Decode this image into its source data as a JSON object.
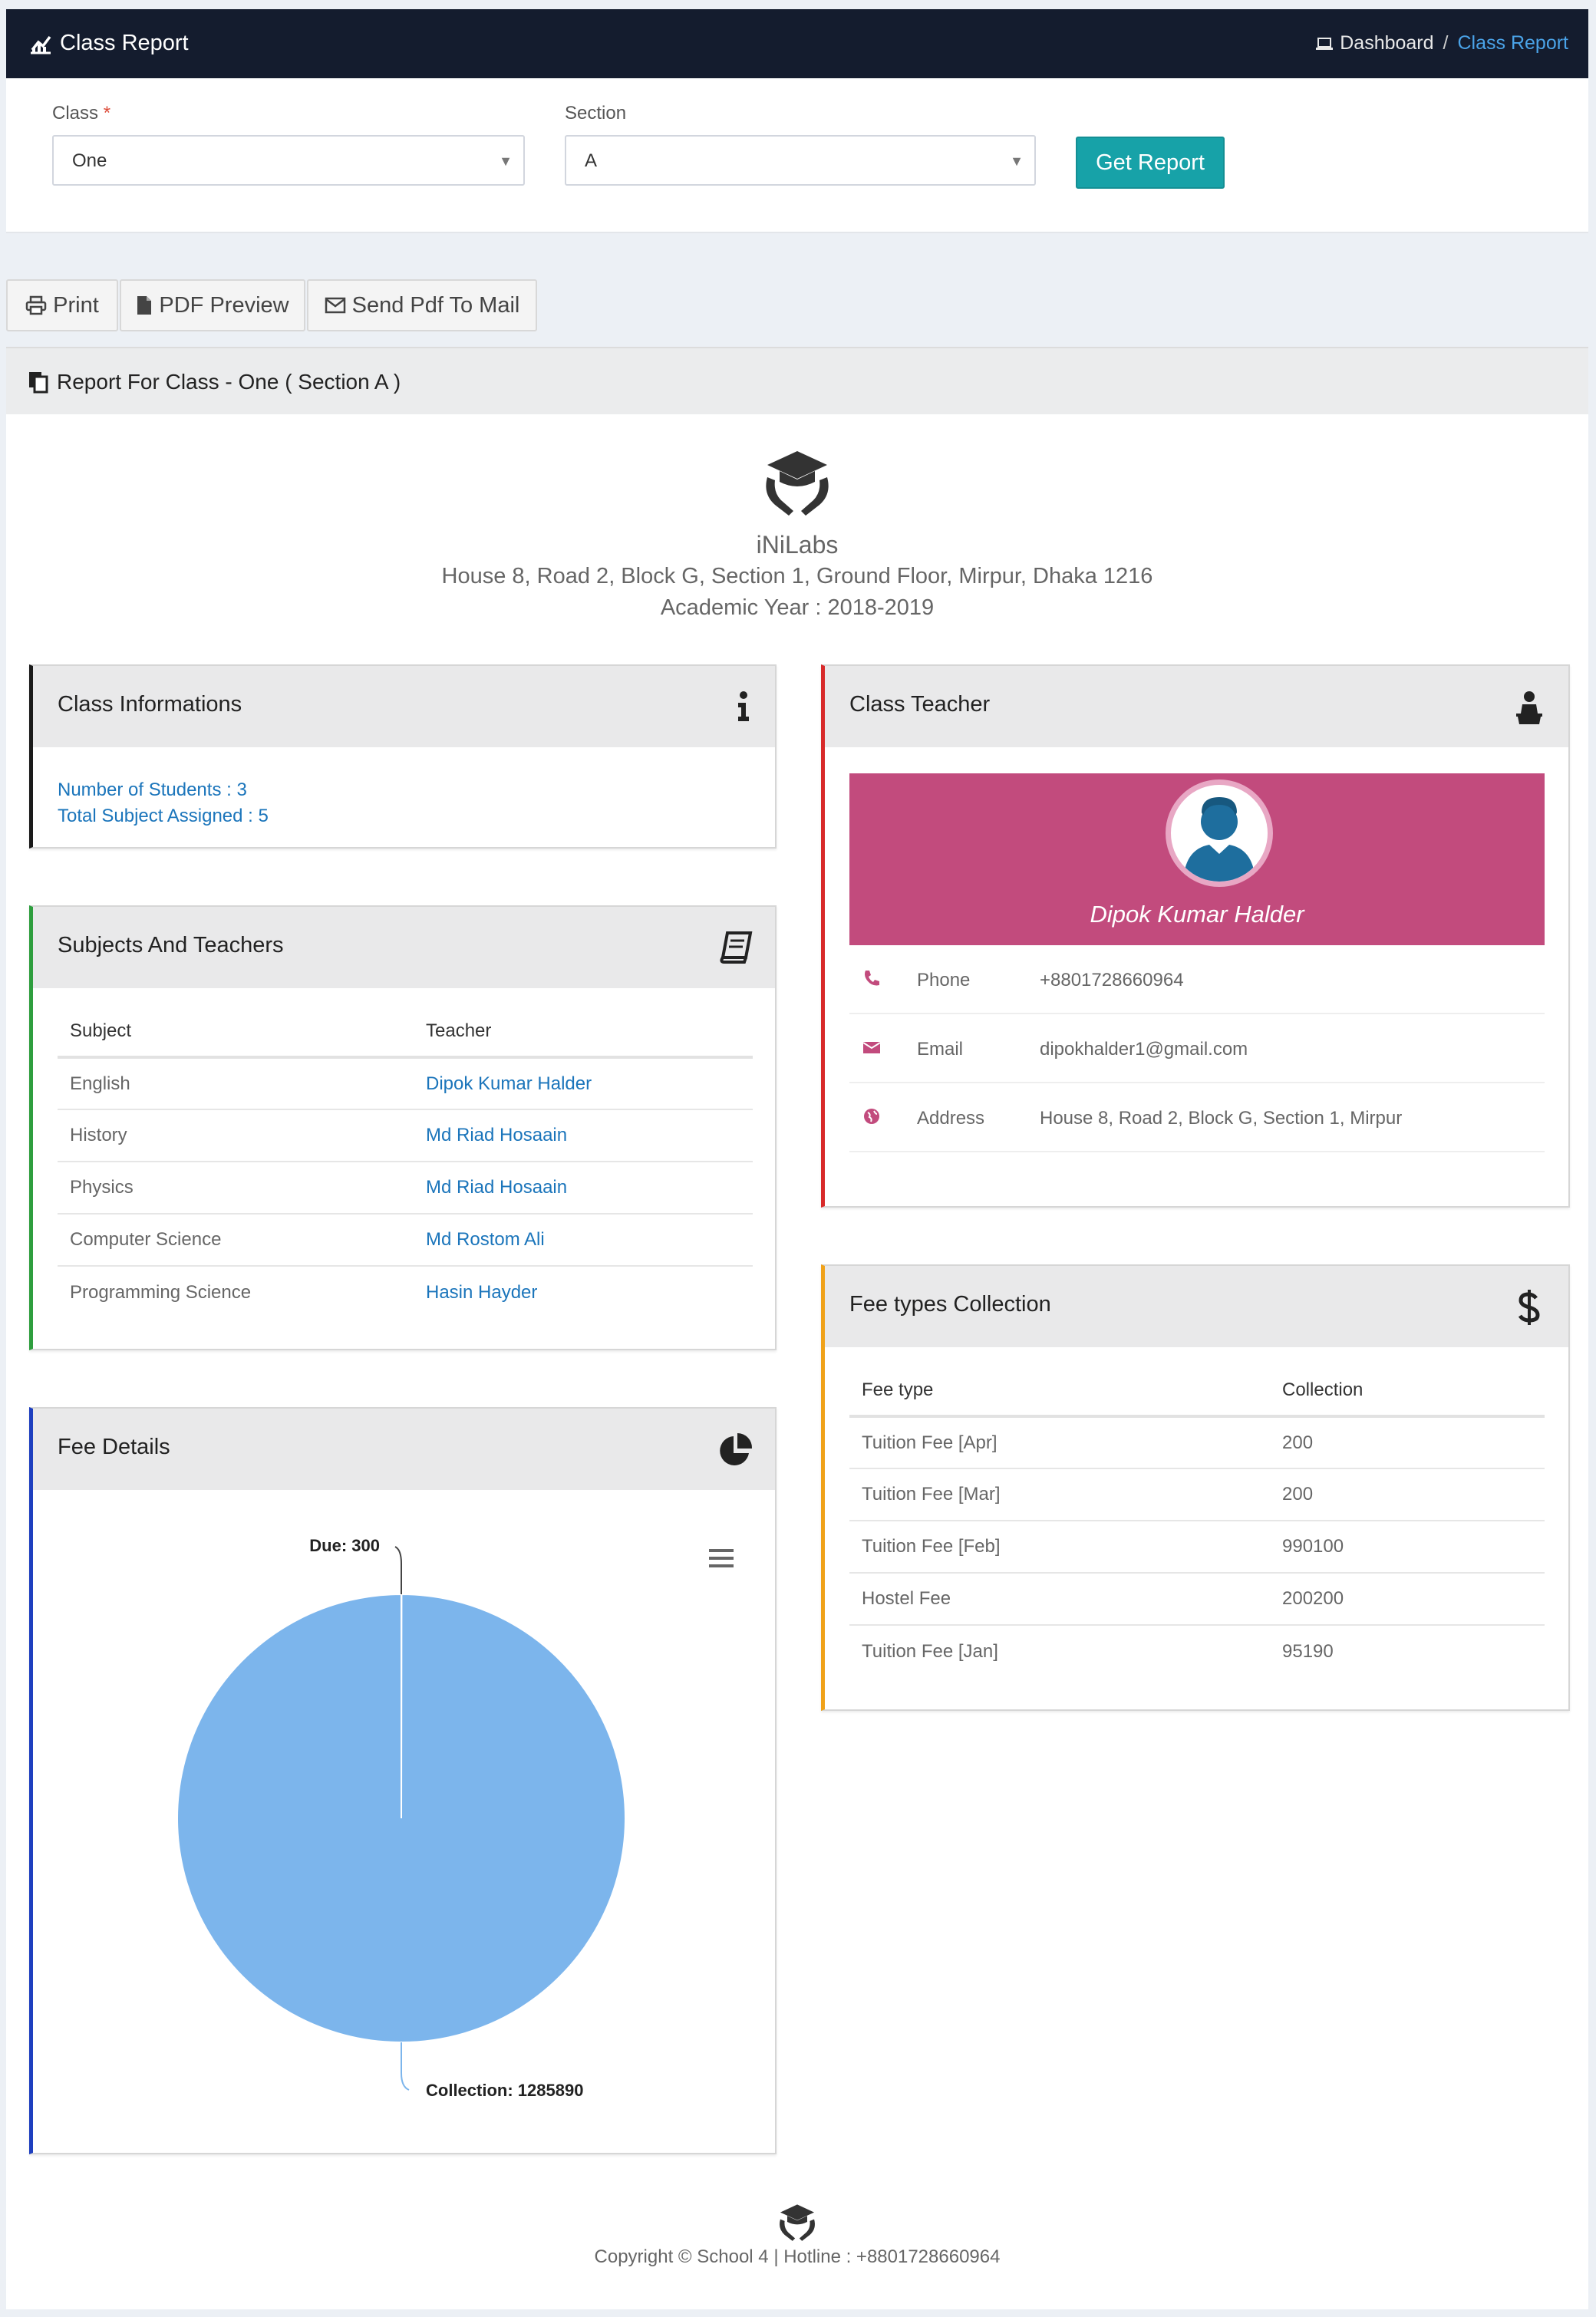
{
  "header": {
    "title": "Class Report",
    "breadcrumb": {
      "home": "Dashboard",
      "separator": "/",
      "current": "Class Report"
    }
  },
  "filters": {
    "class_label": "Class",
    "required_mark": "*",
    "class_value": "One",
    "section_label": "Section",
    "section_value": "A",
    "submit_label": "Get Report"
  },
  "actions": {
    "print": "Print",
    "pdf": "PDF Preview",
    "mail": "Send Pdf To Mail"
  },
  "report": {
    "title": "Report For Class - One ( Section A )",
    "school_name": "iNiLabs",
    "school_address": "House 8, Road 2, Block G, Section 1, Ground Floor, Mirpur, Dhaka 1216",
    "academic_year": "Academic Year : 2018-2019"
  },
  "class_info": {
    "title": "Class Informations",
    "students": "Number of Students : 3",
    "subjects": "Total Subject Assigned : 5"
  },
  "subjects": {
    "title": "Subjects And Teachers",
    "columns": [
      "Subject",
      "Teacher"
    ],
    "rows": [
      {
        "subject": "English",
        "teacher": "Dipok Kumar Halder"
      },
      {
        "subject": "History",
        "teacher": "Md Riad Hosaain"
      },
      {
        "subject": "Physics",
        "teacher": "Md Riad Hosaain"
      },
      {
        "subject": "Computer Science",
        "teacher": "Md Rostom Ali"
      },
      {
        "subject": "Programming Science",
        "teacher": "Hasin Hayder"
      }
    ]
  },
  "class_teacher": {
    "title": "Class Teacher",
    "name": "Dipok Kumar Halder",
    "phone_label": "Phone",
    "phone": "+8801728660964",
    "email_label": "Email",
    "email": "dipokhalder1@gmail.com",
    "address_label": "Address",
    "address": "House 8, Road 2, Block G, Section 1, Mirpur"
  },
  "fee_types": {
    "title": "Fee types Collection",
    "columns": [
      "Fee type",
      "Collection"
    ],
    "rows": [
      {
        "type": "Tuition Fee [Apr]",
        "amount": "200"
      },
      {
        "type": "Tuition Fee [Mar]",
        "amount": "200"
      },
      {
        "type": "Tuition Fee [Feb]",
        "amount": "990100"
      },
      {
        "type": "Hostel Fee",
        "amount": "200200"
      },
      {
        "type": "Tuition Fee [Jan]",
        "amount": "95190"
      }
    ]
  },
  "fee_details": {
    "title": "Fee Details"
  },
  "chart_data": {
    "type": "pie",
    "labels": [
      "Due",
      "Collection"
    ],
    "values": [
      300,
      1285890
    ],
    "data_labels": [
      "Due: 300",
      "Collection: 1285890"
    ],
    "colors": [
      "#7cb5ec",
      "#7cb5ec"
    ]
  },
  "footer": {
    "text": "Copyright © School 4 | Hotline : +8801728660964"
  },
  "colors": {
    "header_bg": "#141c2e",
    "accent_teal": "#17a2a8",
    "teacher_banner": "#c24b7d",
    "link": "#1b75bb"
  }
}
